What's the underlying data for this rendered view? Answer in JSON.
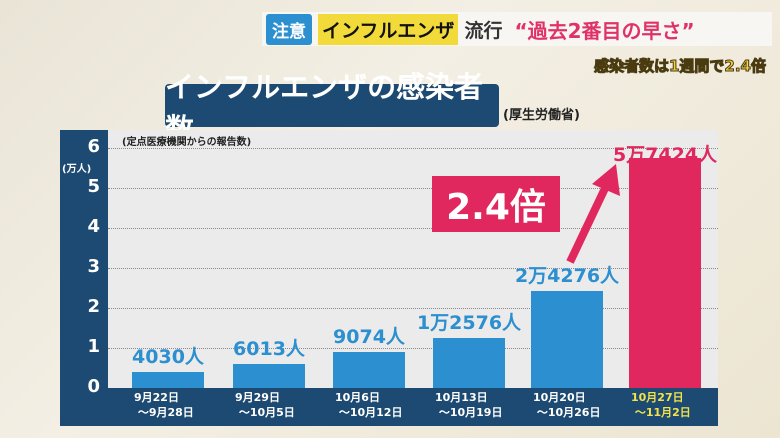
{
  "banner": {
    "caution": "注意",
    "flu": "インフルエンザ",
    "trend": "流行",
    "quote": "“過去2番目の早さ”",
    "subtitle": "感染者数は1週間で2.4倍"
  },
  "colors": {
    "bar": "#2b8fd0",
    "highlight": "#e0285e",
    "navy": "#1d4a72",
    "highlight_label": "#f2e34a"
  },
  "chart_data": {
    "type": "bar",
    "title": "インフルエンザの感染者数",
    "source": "(厚生労働省)",
    "note": "(定点医療機関からの報告数)",
    "ylabel": "(万人)",
    "ylim": [
      0,
      6
    ],
    "yticks": [
      "0",
      "1",
      "2",
      "3",
      "4",
      "5",
      "6"
    ],
    "grid": true,
    "categories": [
      "9月22日\n ～9月28日",
      "9月29日\n ～10月5日",
      "10月6日\n ～10月12日",
      "10月13日\n ～10月19日",
      "10月20日\n ～10月26日",
      "10月27日\n ～11月2日"
    ],
    "values": [
      4030,
      6013,
      9074,
      12576,
      24276,
      57424
    ],
    "data_labels": [
      "4030人",
      "6013人",
      "9074人",
      "1万2576人",
      "2万4276人",
      "5万7424人"
    ],
    "highlight_index": 5,
    "annotation": "2.4倍"
  }
}
